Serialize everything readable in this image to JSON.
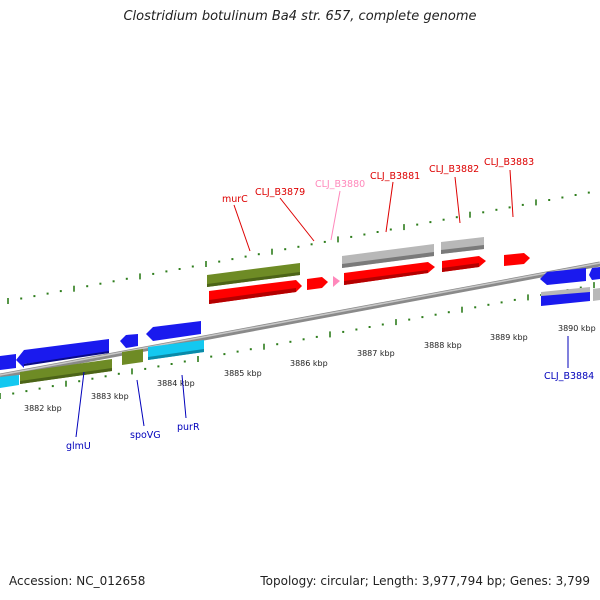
{
  "header": {
    "title": "Clostridium botulinum Ba4 str. 657, complete genome"
  },
  "footer": {
    "accession": "Accession: NC_012658",
    "stats": "Topology: circular; Length: 3,977,794 bp; Genes: 3,799"
  },
  "colors": {
    "backbone": "#8a8a8a",
    "tick": "#2e7d1c",
    "cds_red": "#ff0000",
    "cds_gray": "#b8b8b8",
    "cds_green": "#6e8b25",
    "cds_blue": "#1a1aee",
    "cds_cyan": "#14c8f0",
    "label_red": "#dd0000",
    "label_pink": "#ff88bb",
    "label_blue": "#0000bb"
  },
  "scale": {
    "unit": "kbp",
    "labels": [
      "3882 kbp",
      "3883 kbp",
      "3884 kbp",
      "3885 kbp",
      "3886 kbp",
      "3887 kbp",
      "3888 kbp",
      "3889 kbp",
      "3890 kbp"
    ]
  },
  "genes_top": [
    {
      "label": "murC",
      "color": "label_red"
    },
    {
      "label": "CLJ_B3879",
      "color": "label_red"
    },
    {
      "label": "CLJ_B3880",
      "color": "label_pink"
    },
    {
      "label": "CLJ_B3881",
      "color": "label_red"
    },
    {
      "label": "CLJ_B3882",
      "color": "label_red"
    },
    {
      "label": "CLJ_B3883",
      "color": "label_red"
    }
  ],
  "genes_bottom": [
    {
      "label": "glmU",
      "color": "label_blue"
    },
    {
      "label": "spoVG",
      "color": "label_blue"
    },
    {
      "label": "purR",
      "color": "label_blue"
    },
    {
      "label": "CLJ_B3884",
      "color": "label_blue"
    }
  ]
}
